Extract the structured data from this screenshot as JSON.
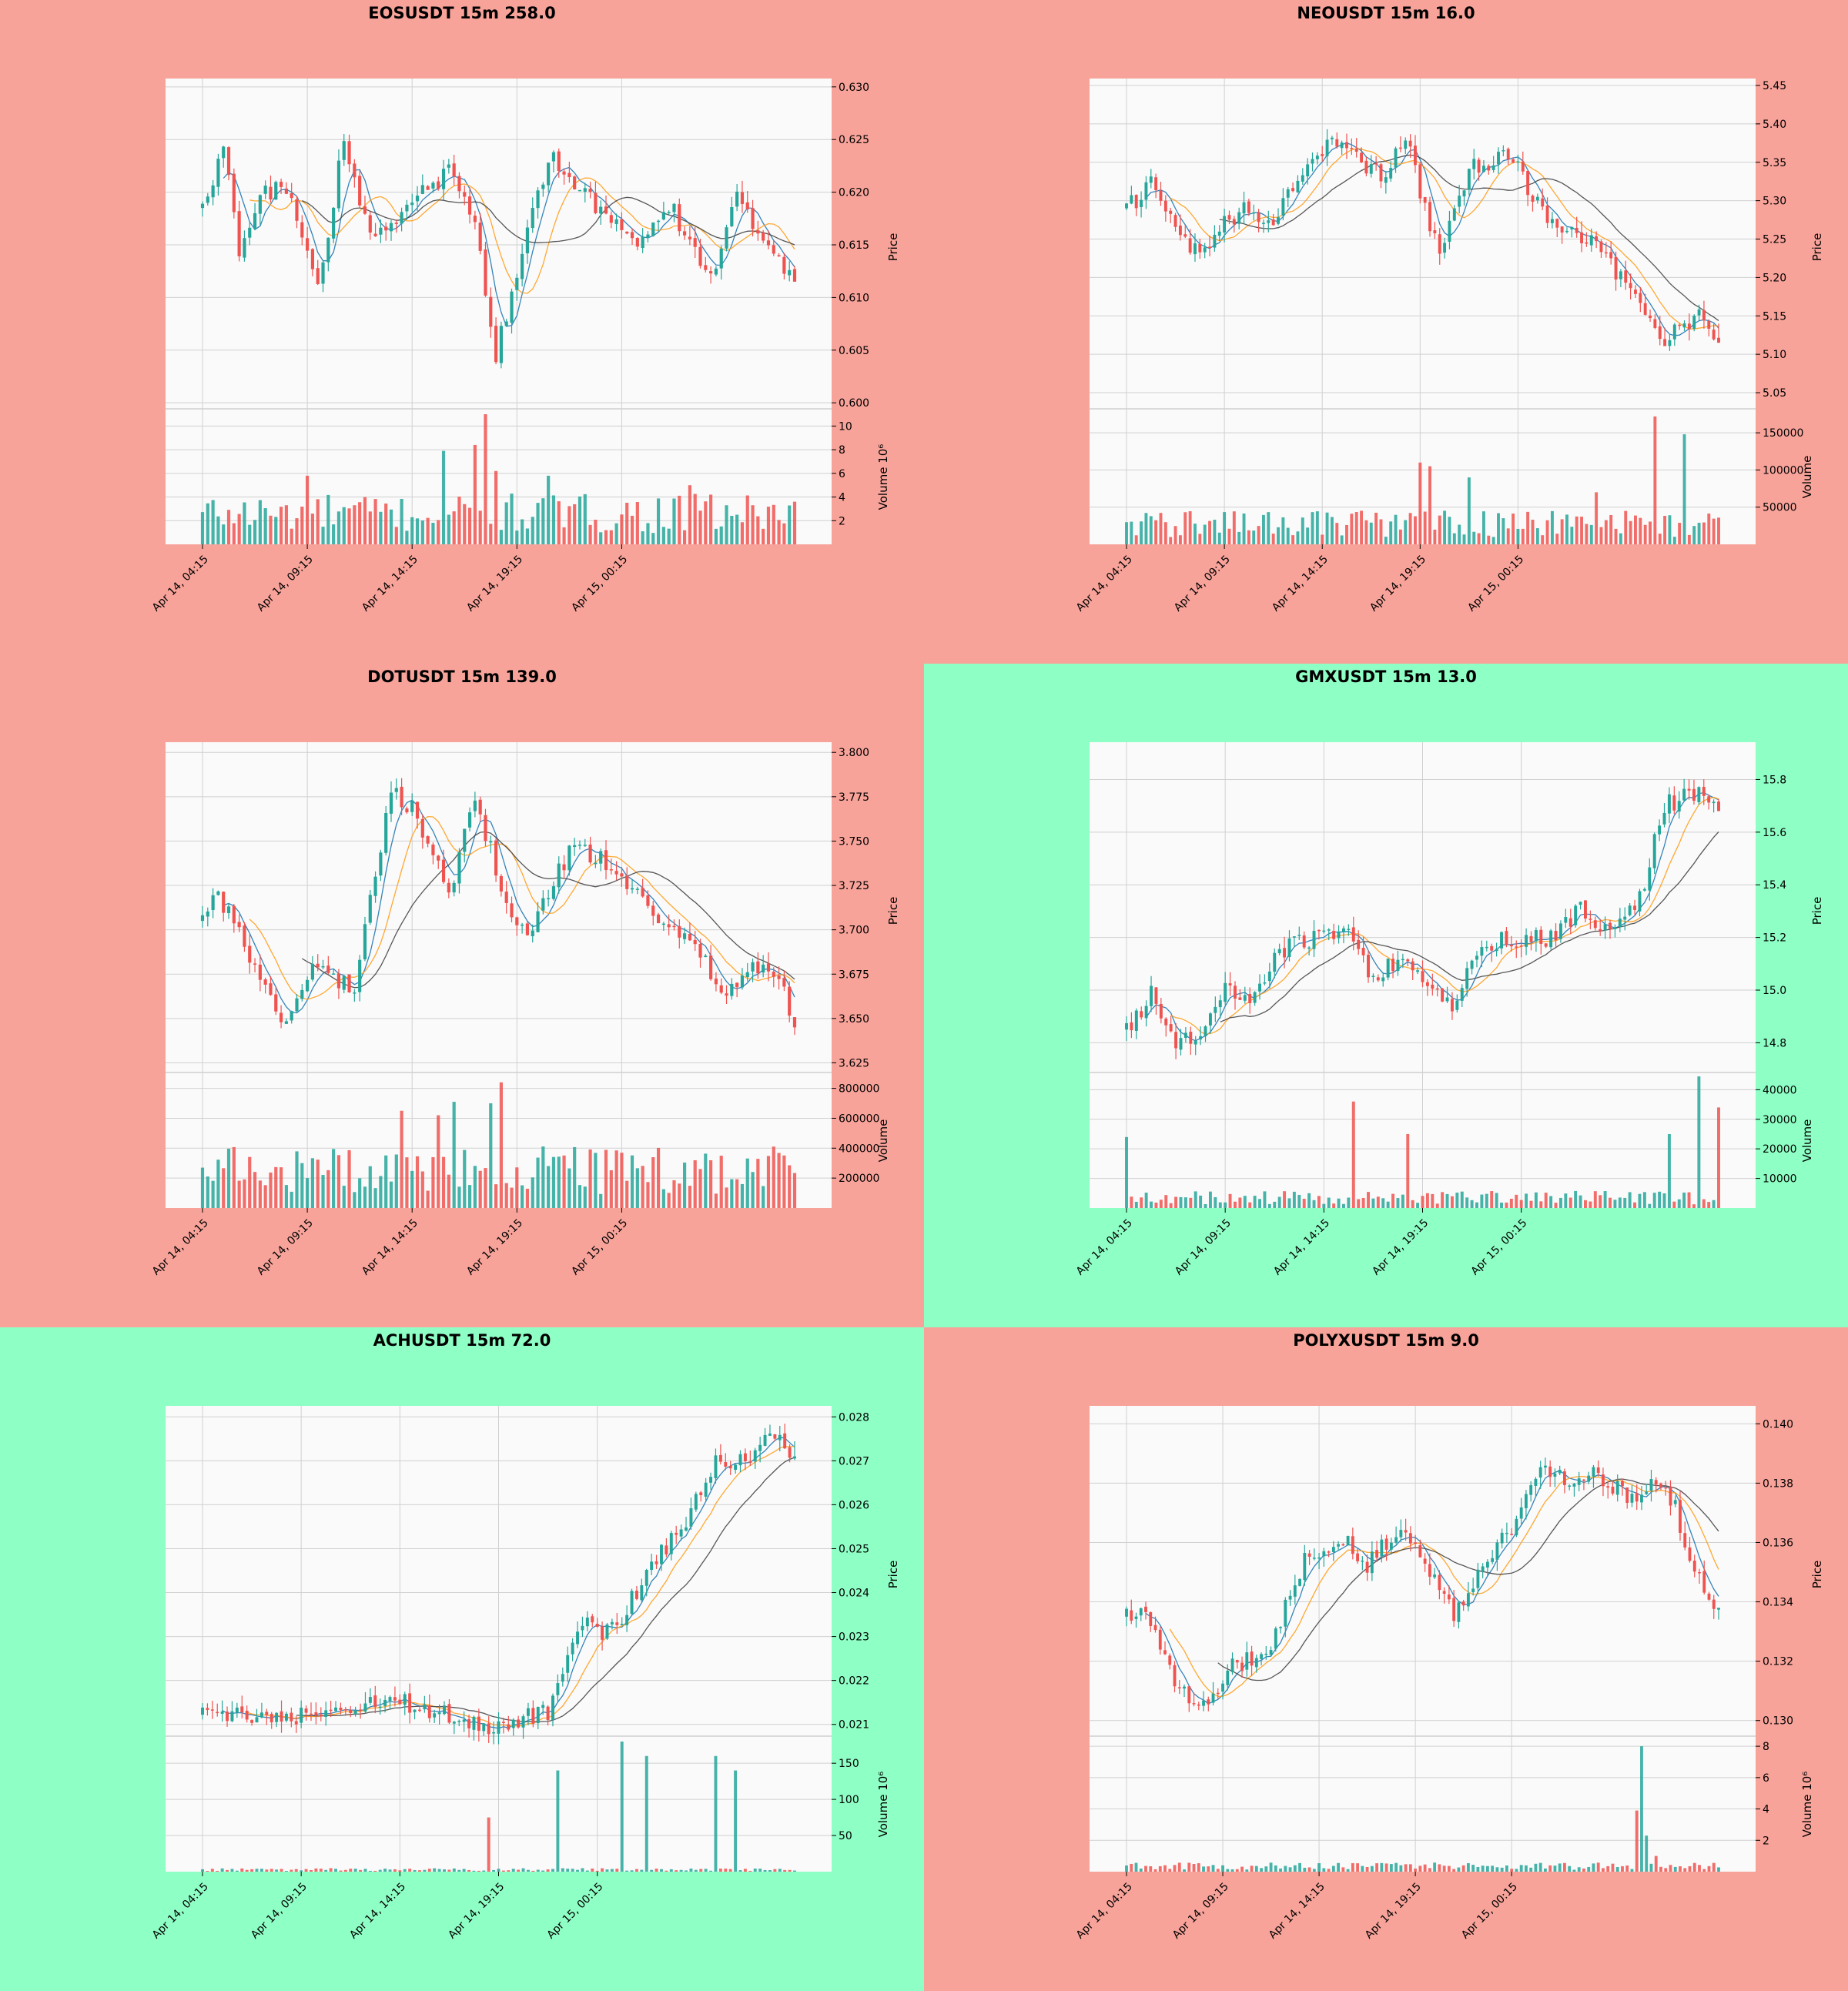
{
  "colors": {
    "up": "#26a69a",
    "down": "#ef5350",
    "panel_bg_red": "#f8a39a",
    "panel_bg_green": "#8effc5",
    "plot_bg": "#fafafa",
    "grid": "#d0d0d0",
    "ma_short": "#1f77b4",
    "ma_mid": "#ff9f1c",
    "ma_long": "#444444"
  },
  "chart_data": [
    {
      "type": "candlestick",
      "title": "EOSUSDT 15m 258.0",
      "background": "red",
      "ylabel": "Price",
      "volume_label": "Volume  10⁶",
      "x_ticks": [
        "Apr 14, 04:15",
        "Apr 14, 09:15",
        "Apr 14, 14:15",
        "Apr 14, 19:15",
        "Apr 15, 00:15"
      ],
      "price_ticks": [
        "0.600",
        "0.605",
        "0.610",
        "0.615",
        "0.620",
        "0.625",
        "0.630"
      ],
      "ylim": [
        0.5995,
        0.6305
      ],
      "volume_ticks": [
        "2",
        "4",
        "6",
        "8",
        "10"
      ],
      "volume_ylim": [
        0,
        11
      ],
      "price_start": 0.6185,
      "price_end": 0.6115,
      "price_pivots": [
        [
          0,
          0.6185
        ],
        [
          4,
          0.624
        ],
        [
          7,
          0.6145
        ],
        [
          11,
          0.6195
        ],
        [
          16,
          0.6205
        ],
        [
          22,
          0.611
        ],
        [
          27,
          0.625
        ],
        [
          32,
          0.6155
        ],
        [
          40,
          0.619
        ],
        [
          47,
          0.622
        ],
        [
          52,
          0.6175
        ],
        [
          56,
          0.6045
        ],
        [
          63,
          0.619
        ],
        [
          67,
          0.6235
        ],
        [
          75,
          0.6185
        ],
        [
          83,
          0.6155
        ],
        [
          90,
          0.618
        ],
        [
          97,
          0.6115
        ],
        [
          102,
          0.6195
        ],
        [
          109,
          0.614
        ],
        [
          113,
          0.6115
        ]
      ],
      "volume_base": 2.6,
      "volume_spikes": [
        [
          46,
          7.9
        ],
        [
          52,
          8.4
        ],
        [
          54,
          11.0
        ],
        [
          56,
          6.2
        ],
        [
          66,
          5.8
        ],
        [
          20,
          5.8
        ],
        [
          93,
          5.0
        ]
      ]
    },
    {
      "type": "candlestick",
      "title": "NEOUSDT 15m 16.0",
      "background": "red",
      "ylabel": "Price",
      "volume_label": "Volume",
      "x_ticks": [
        "Apr 14, 04:15",
        "Apr 14, 09:15",
        "Apr 14, 14:15",
        "Apr 14, 19:15",
        "Apr 15, 00:15"
      ],
      "price_ticks": [
        "5.05",
        "5.10",
        "5.15",
        "5.20",
        "5.25",
        "5.30",
        "5.35",
        "5.40",
        "5.45"
      ],
      "ylim": [
        5.03,
        5.455
      ],
      "volume_ticks": [
        "50000",
        "100000",
        "150000"
      ],
      "volume_ylim": [
        0,
        175000
      ],
      "price_start": 5.29,
      "price_end": 5.115,
      "price_pivots": [
        [
          0,
          5.29
        ],
        [
          5,
          5.32
        ],
        [
          13,
          5.23
        ],
        [
          24,
          5.29
        ],
        [
          30,
          5.27
        ],
        [
          38,
          5.36
        ],
        [
          44,
          5.375
        ],
        [
          52,
          5.33
        ],
        [
          57,
          5.39
        ],
        [
          62,
          5.26
        ],
        [
          64,
          5.24
        ],
        [
          70,
          5.34
        ],
        [
          78,
          5.36
        ],
        [
          86,
          5.28
        ],
        [
          96,
          5.24
        ],
        [
          104,
          5.18
        ],
        [
          110,
          5.11
        ],
        [
          113,
          5.135
        ],
        [
          118,
          5.15
        ],
        [
          121,
          5.115
        ]
      ],
      "volume_base": 28000,
      "volume_spikes": [
        [
          108,
          172000
        ],
        [
          114,
          148000
        ],
        [
          62,
          105000
        ],
        [
          60,
          110000
        ],
        [
          70,
          90000
        ],
        [
          96,
          70000
        ]
      ]
    },
    {
      "type": "candlestick",
      "title": "DOTUSDT 15m 139.0",
      "background": "red",
      "ylabel": "Price",
      "volume_label": "Volume",
      "x_ticks": [
        "Apr 14, 04:15",
        "Apr 14, 09:15",
        "Apr 14, 14:15",
        "Apr 14, 19:15",
        "Apr 15, 00:15"
      ],
      "price_ticks": [
        "3.625",
        "3.650",
        "3.675",
        "3.700",
        "3.725",
        "3.750",
        "3.775",
        "3.800"
      ],
      "ylim": [
        3.62,
        3.804
      ],
      "volume_ticks": [
        "200000",
        "400000",
        "600000",
        "800000"
      ],
      "volume_ylim": [
        0,
        870000
      ],
      "price_start": 3.705,
      "price_end": 3.645,
      "price_pivots": [
        [
          0,
          3.705
        ],
        [
          3,
          3.72
        ],
        [
          8,
          3.69
        ],
        [
          15,
          3.645
        ],
        [
          21,
          3.68
        ],
        [
          29,
          3.665
        ],
        [
          36,
          3.78
        ],
        [
          41,
          3.765
        ],
        [
          47,
          3.72
        ],
        [
          52,
          3.775
        ],
        [
          58,
          3.715
        ],
        [
          62,
          3.695
        ],
        [
          70,
          3.745
        ],
        [
          78,
          3.738
        ],
        [
          85,
          3.71
        ],
        [
          92,
          3.695
        ],
        [
          100,
          3.665
        ],
        [
          104,
          3.68
        ],
        [
          110,
          3.675
        ],
        [
          113,
          3.645
        ]
      ],
      "volume_base": 250000,
      "volume_spikes": [
        [
          48,
          710000
        ],
        [
          55,
          700000
        ],
        [
          57,
          840000
        ],
        [
          45,
          620000
        ],
        [
          38,
          650000
        ]
      ]
    },
    {
      "type": "candlestick",
      "title": "GMXUSDT 15m 13.0",
      "background": "green",
      "ylabel": "Price",
      "volume_label": "Volume",
      "x_ticks": [
        "Apr 14, 04:15",
        "Apr 14, 09:15",
        "Apr 14, 14:15",
        "Apr 14, 19:15",
        "Apr 15, 00:15"
      ],
      "price_ticks": [
        "14.8",
        "15.0",
        "15.2",
        "15.4",
        "15.6",
        "15.8"
      ],
      "ylim": [
        14.69,
        15.93
      ],
      "volume_ticks": [
        "10000",
        "20000",
        "30000",
        "40000"
      ],
      "volume_ylim": [
        0,
        44000
      ],
      "price_start": 14.85,
      "price_end": 15.68,
      "price_pivots": [
        [
          0,
          14.85
        ],
        [
          5,
          14.98
        ],
        [
          9,
          14.82
        ],
        [
          14,
          14.8
        ],
        [
          20,
          15.02
        ],
        [
          26,
          14.97
        ],
        [
          31,
          15.15
        ],
        [
          38,
          15.2
        ],
        [
          45,
          15.25
        ],
        [
          50,
          15.02
        ],
        [
          56,
          15.15
        ],
        [
          62,
          14.98
        ],
        [
          66,
          14.95
        ],
        [
          72,
          15.15
        ],
        [
          78,
          15.2
        ],
        [
          86,
          15.2
        ],
        [
          92,
          15.3
        ],
        [
          98,
          15.22
        ],
        [
          104,
          15.35
        ],
        [
          109,
          15.7
        ],
        [
          115,
          15.75
        ],
        [
          120,
          15.7
        ]
      ],
      "volume_base": 3500,
      "volume_spikes": [
        [
          46,
          36000
        ],
        [
          57,
          25000
        ],
        [
          116,
          44500
        ],
        [
          120,
          34000
        ],
        [
          110,
          25000
        ],
        [
          0,
          24000
        ]
      ]
    },
    {
      "type": "candlestick",
      "title": "ACHUSDT 15m 72.0",
      "background": "green",
      "ylabel": "Price",
      "volume_label": "Volume  10⁶",
      "x_ticks": [
        "Apr 14, 04:15",
        "Apr 14, 09:15",
        "Apr 14, 14:15",
        "Apr 14, 19:15",
        "Apr 15, 00:15"
      ],
      "price_ticks": [
        "0.021",
        "0.022",
        "0.023",
        "0.024",
        "0.025",
        "0.026",
        "0.027",
        "0.028"
      ],
      "ylim": [
        0.02075,
        0.02818
      ],
      "volume_ticks": [
        "50",
        "100",
        "150"
      ],
      "volume_ylim": [
        0,
        180
      ],
      "price_start": 0.02122,
      "price_end": 0.0271,
      "price_pivots": [
        [
          0,
          0.02122
        ],
        [
          5,
          0.0213
        ],
        [
          14,
          0.02105
        ],
        [
          26,
          0.02135
        ],
        [
          37,
          0.0216
        ],
        [
          46,
          0.02135
        ],
        [
          58,
          0.021
        ],
        [
          70,
          0.0213
        ],
        [
          76,
          0.0233
        ],
        [
          82,
          0.0231
        ],
        [
          85,
          0.0234
        ],
        [
          90,
          0.0245
        ],
        [
          99,
          0.0258
        ],
        [
          104,
          0.0271
        ],
        [
          110,
          0.0269
        ],
        [
          115,
          0.0276
        ],
        [
          120,
          0.0271
        ]
      ],
      "volume_base": 3,
      "volume_spikes": [
        [
          72,
          140
        ],
        [
          85,
          180
        ],
        [
          90,
          160
        ],
        [
          104,
          160
        ],
        [
          108,
          140
        ],
        [
          58,
          75
        ]
      ]
    },
    {
      "type": "candlestick",
      "title": "POLYXUSDT 15m 9.0",
      "background": "red",
      "ylabel": "Price",
      "volume_label": "Volume  10⁶",
      "x_ticks": [
        "Apr 14, 04:15",
        "Apr 14, 09:15",
        "Apr 14, 14:15",
        "Apr 14, 19:15",
        "Apr 15, 00:15"
      ],
      "price_ticks": [
        "0.130",
        "0.132",
        "0.134",
        "0.136",
        "0.138",
        "0.140"
      ],
      "ylim": [
        0.1295,
        0.1405
      ],
      "volume_ticks": [
        "2",
        "4",
        "6",
        "8"
      ],
      "volume_ylim": [
        0,
        8.3
      ],
      "price_start": 0.1335,
      "price_end": 0.1338,
      "price_pivots": [
        [
          0,
          0.1335
        ],
        [
          5,
          0.1335
        ],
        [
          10,
          0.1312
        ],
        [
          15,
          0.1305
        ],
        [
          22,
          0.1318
        ],
        [
          30,
          0.1325
        ],
        [
          37,
          0.1355
        ],
        [
          45,
          0.1362
        ],
        [
          50,
          0.1352
        ],
        [
          56,
          0.1365
        ],
        [
          62,
          0.1355
        ],
        [
          68,
          0.1335
        ],
        [
          75,
          0.1355
        ],
        [
          80,
          0.1365
        ],
        [
          86,
          0.1385
        ],
        [
          92,
          0.138
        ],
        [
          98,
          0.1383
        ],
        [
          104,
          0.1375
        ],
        [
          110,
          0.138
        ],
        [
          114,
          0.1372
        ],
        [
          118,
          0.135
        ],
        [
          123,
          0.1338
        ]
      ],
      "volume_base": 0.35,
      "volume_spikes": [
        [
          107,
          8.0
        ],
        [
          106,
          3.9
        ],
        [
          108,
          2.3
        ],
        [
          110,
          1.0
        ]
      ]
    }
  ]
}
